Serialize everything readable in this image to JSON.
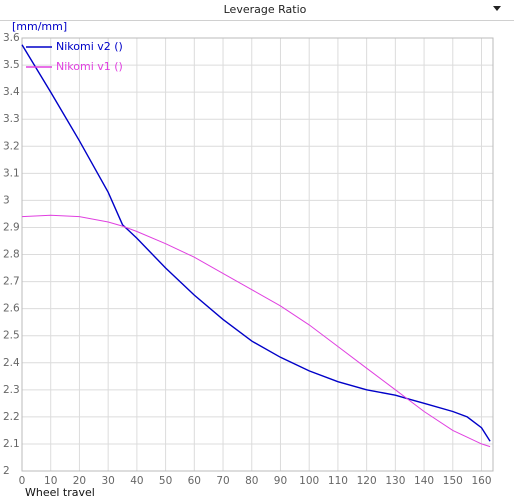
{
  "chart_data": {
    "type": "line",
    "title": "Leverage Ratio",
    "y_label": "[mm/mm]",
    "x_label": "Wheel travel",
    "x": [
      0,
      10,
      20,
      30,
      35,
      40,
      50,
      60,
      70,
      80,
      90,
      100,
      110,
      120,
      130,
      135,
      140,
      150,
      155,
      160,
      163
    ],
    "series": [
      {
        "name": "Nikomi v2 ()",
        "color": "#0000c8",
        "values": [
          3.575,
          3.4,
          3.22,
          3.03,
          2.91,
          2.86,
          2.75,
          2.65,
          2.56,
          2.48,
          2.42,
          2.37,
          2.33,
          2.3,
          2.28,
          2.265,
          2.25,
          2.22,
          2.2,
          2.16,
          2.11
        ]
      },
      {
        "name": "Nikomi v1 ()",
        "color": "#e040e0",
        "values": [
          2.94,
          2.945,
          2.94,
          2.92,
          2.905,
          2.885,
          2.84,
          2.79,
          2.73,
          2.67,
          2.61,
          2.54,
          2.46,
          2.38,
          2.3,
          2.26,
          2.22,
          2.15,
          2.125,
          2.1,
          2.09
        ]
      }
    ],
    "xlim": [
      0,
      164
    ],
    "ylim": [
      2,
      3.6
    ],
    "xticks": [
      0,
      10,
      20,
      30,
      40,
      50,
      60,
      70,
      80,
      90,
      100,
      110,
      120,
      130,
      140,
      150,
      160
    ],
    "yticks": [
      2,
      2.1,
      2.2,
      2.3,
      2.4,
      2.5,
      2.6,
      2.7,
      2.8,
      2.9,
      3,
      3.1,
      3.2,
      3.3,
      3.4,
      3.5,
      3.6
    ],
    "grid": true,
    "legend": "top-left"
  }
}
